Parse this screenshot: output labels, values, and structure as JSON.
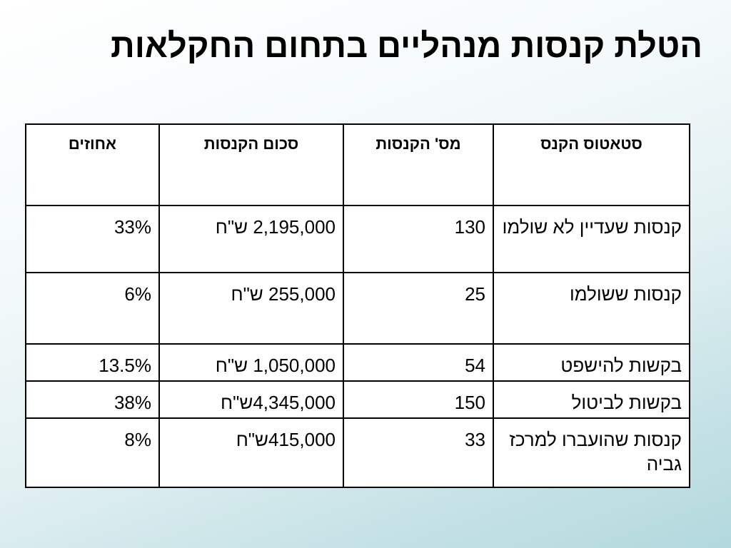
{
  "title": "הטלת קנסות מנהליים בתחום החקלאות",
  "table": {
    "headers": [
      "סטאטוס הקנס",
      "מס' הקנסות",
      "סכום הקנסות",
      "אחוזים"
    ],
    "rows": [
      {
        "status": "קנסות שעדיין לא שולמו",
        "count": "130",
        "sum": "2,195,000 ש\"ח",
        "percent": "33%"
      },
      {
        "status": "קנסות ששולמו",
        "count": "25",
        "sum": "255,000 ש\"ח",
        "percent": "6%"
      },
      {
        "status": "בקשות להישפט",
        "count": "54",
        "sum": "1,050,000 ש\"ח",
        "percent": "13.5%"
      },
      {
        "status": "בקשות לביטול",
        "count": "150",
        "sum": "4,345,000ש\"ח",
        "percent": "38%"
      },
      {
        "status": "קנסות שהועברו למרכז גביה",
        "count": "33",
        "sum": "415,000ש\"ח",
        "percent": "8%"
      }
    ]
  }
}
